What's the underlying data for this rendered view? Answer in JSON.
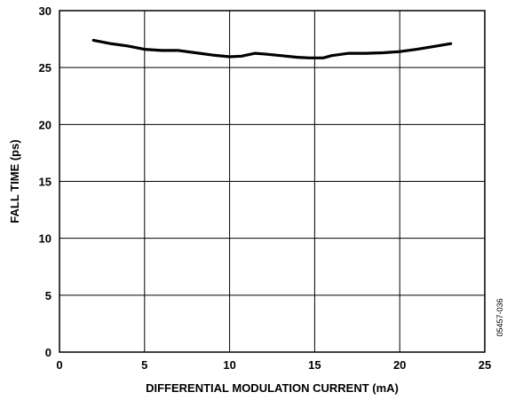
{
  "chart_data": {
    "type": "line",
    "title": "",
    "xlabel": "DIFFERENTIAL MODULATION CURRENT (mA)",
    "ylabel": "FALL TIME (ps)",
    "xlim": [
      0,
      25
    ],
    "ylim": [
      0,
      30
    ],
    "xticks": [
      0,
      5,
      10,
      15,
      20,
      25
    ],
    "yticks": [
      0,
      5,
      10,
      15,
      20,
      25,
      30
    ],
    "grid": true,
    "series": [
      {
        "x": [
          2.0,
          3.0,
          4.0,
          5.0,
          6.0,
          7.0,
          8.0,
          9.0,
          10.0,
          10.7,
          11.5,
          12.0,
          13.0,
          14.0,
          14.7,
          15.5,
          16.0,
          17.0,
          18.0,
          19.0,
          20.0,
          21.0,
          22.0,
          23.0
        ],
        "values": [
          27.4,
          27.1,
          26.9,
          26.6,
          26.5,
          26.5,
          26.3,
          26.1,
          25.95,
          26.0,
          26.25,
          26.2,
          26.05,
          25.9,
          25.85,
          25.85,
          26.05,
          26.25,
          26.25,
          26.3,
          26.4,
          26.6,
          26.85,
          27.1
        ],
        "color": "#000000"
      }
    ]
  },
  "figure_id": "05457-036"
}
